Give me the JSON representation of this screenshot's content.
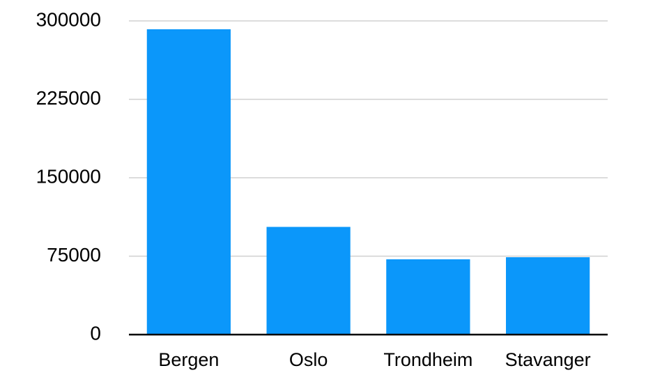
{
  "chart_data": {
    "type": "bar",
    "categories": [
      "Bergen",
      "Oslo",
      "Trondheim",
      "Stavanger"
    ],
    "values": [
      292000,
      103000,
      72000,
      74000
    ],
    "color": "#0b97fa",
    "ylim": [
      0,
      300000
    ],
    "yticks": [
      0,
      75000,
      150000,
      225000,
      300000
    ],
    "grid": true
  }
}
